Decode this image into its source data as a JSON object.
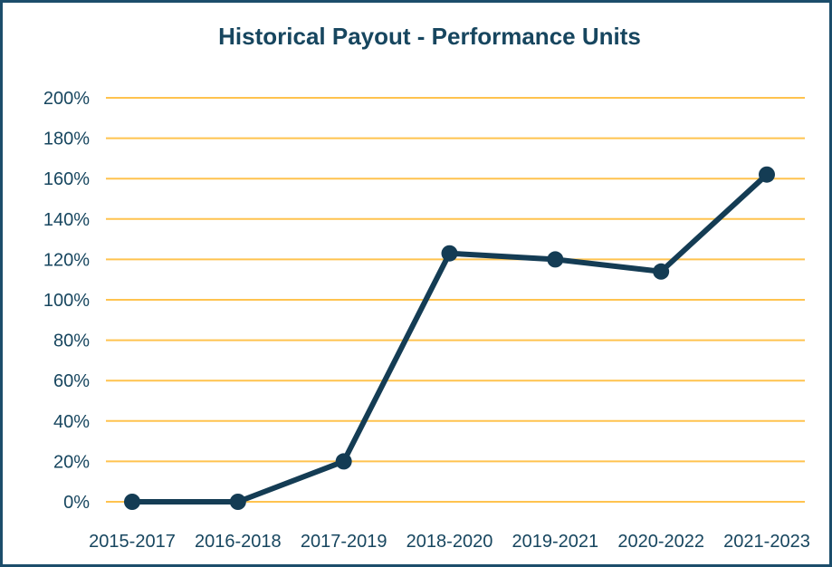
{
  "chart_data": {
    "type": "line",
    "title": "Historical Payout - Performance Units",
    "categories": [
      "2015-2017",
      "2016-2018",
      "2017-2019",
      "2018-2020",
      "2019-2021",
      "2020-2022",
      "2021-2023"
    ],
    "values": [
      0,
      0,
      20,
      123,
      120,
      114,
      162
    ],
    "unit": "%",
    "xlabel": "",
    "ylabel": "",
    "ylim": [
      0,
      200
    ],
    "ytick_step": 20,
    "ytick_labels": [
      "0%",
      "20%",
      "40%",
      "60%",
      "80%",
      "100%",
      "120%",
      "140%",
      "160%",
      "180%",
      "200%"
    ],
    "grid": true,
    "legend": "none",
    "colors": {
      "line": "#143c54",
      "marker": "#143c54",
      "gridline": "#ffc34f",
      "text": "#17465f",
      "frame_border": "#1c4d6b",
      "background": "#ffffff"
    }
  }
}
